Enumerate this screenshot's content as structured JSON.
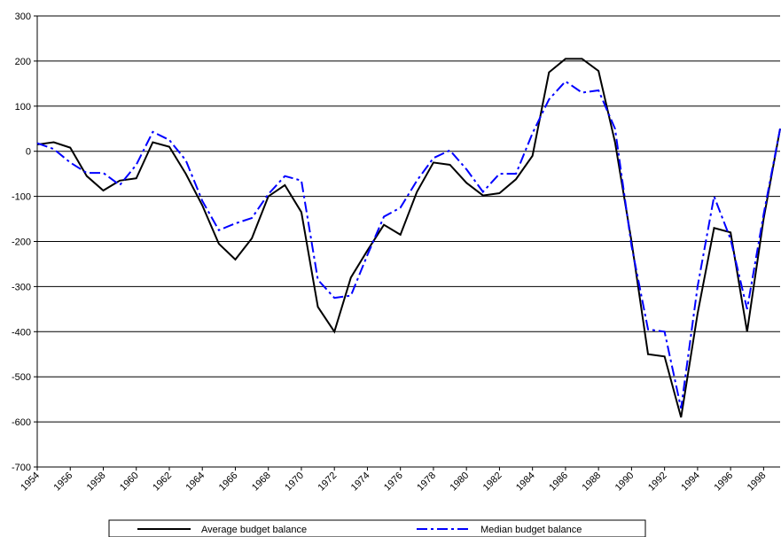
{
  "chart_data": {
    "type": "line",
    "x": [
      1954,
      1955,
      1956,
      1957,
      1958,
      1959,
      1960,
      1961,
      1962,
      1963,
      1964,
      1965,
      1966,
      1967,
      1968,
      1969,
      1970,
      1971,
      1972,
      1973,
      1974,
      1975,
      1976,
      1977,
      1978,
      1979,
      1980,
      1981,
      1982,
      1983,
      1984,
      1985,
      1986,
      1987,
      1988,
      1989,
      1990,
      1991,
      1992,
      1993,
      1994,
      1995,
      1996,
      1997,
      1998,
      1999
    ],
    "series": [
      {
        "name": "Average budget balance",
        "color": "#000000",
        "dash": "solid",
        "values": [
          15,
          20,
          8,
          -55,
          -87,
          -65,
          -60,
          20,
          10,
          -50,
          -120,
          -205,
          -240,
          -193,
          -100,
          -75,
          -135,
          -345,
          -400,
          -280,
          -220,
          -163,
          -185,
          -90,
          -25,
          -30,
          -70,
          -98,
          -93,
          -62,
          -10,
          175,
          205,
          205,
          178,
          20,
          -200,
          -450,
          -455,
          -590,
          -360,
          -170,
          -180,
          -400,
          -150,
          50
        ]
      },
      {
        "name": "Median budget balance",
        "color": "#0000ff",
        "dash": "dashdot",
        "values": [
          18,
          5,
          -25,
          -48,
          -48,
          -75,
          -30,
          43,
          25,
          -20,
          -110,
          -175,
          -160,
          -148,
          -95,
          -55,
          -65,
          -285,
          -325,
          -320,
          -230,
          -145,
          -125,
          -65,
          -15,
          2,
          -40,
          -90,
          -50,
          -50,
          40,
          115,
          155,
          130,
          135,
          50,
          -210,
          -395,
          -400,
          -570,
          -300,
          -100,
          -195,
          -350,
          -140,
          50
        ]
      }
    ],
    "xlim": [
      1954,
      1999
    ],
    "xticks": [
      1954,
      1956,
      1958,
      1960,
      1962,
      1964,
      1966,
      1968,
      1970,
      1972,
      1974,
      1976,
      1978,
      1980,
      1982,
      1984,
      1986,
      1988,
      1990,
      1992,
      1994,
      1996,
      1998
    ],
    "ylim": [
      -700,
      300
    ],
    "yticks": [
      -700,
      -600,
      -500,
      -400,
      -300,
      -200,
      -100,
      0,
      100,
      200,
      300
    ],
    "grid": true,
    "legend": "bottom"
  }
}
